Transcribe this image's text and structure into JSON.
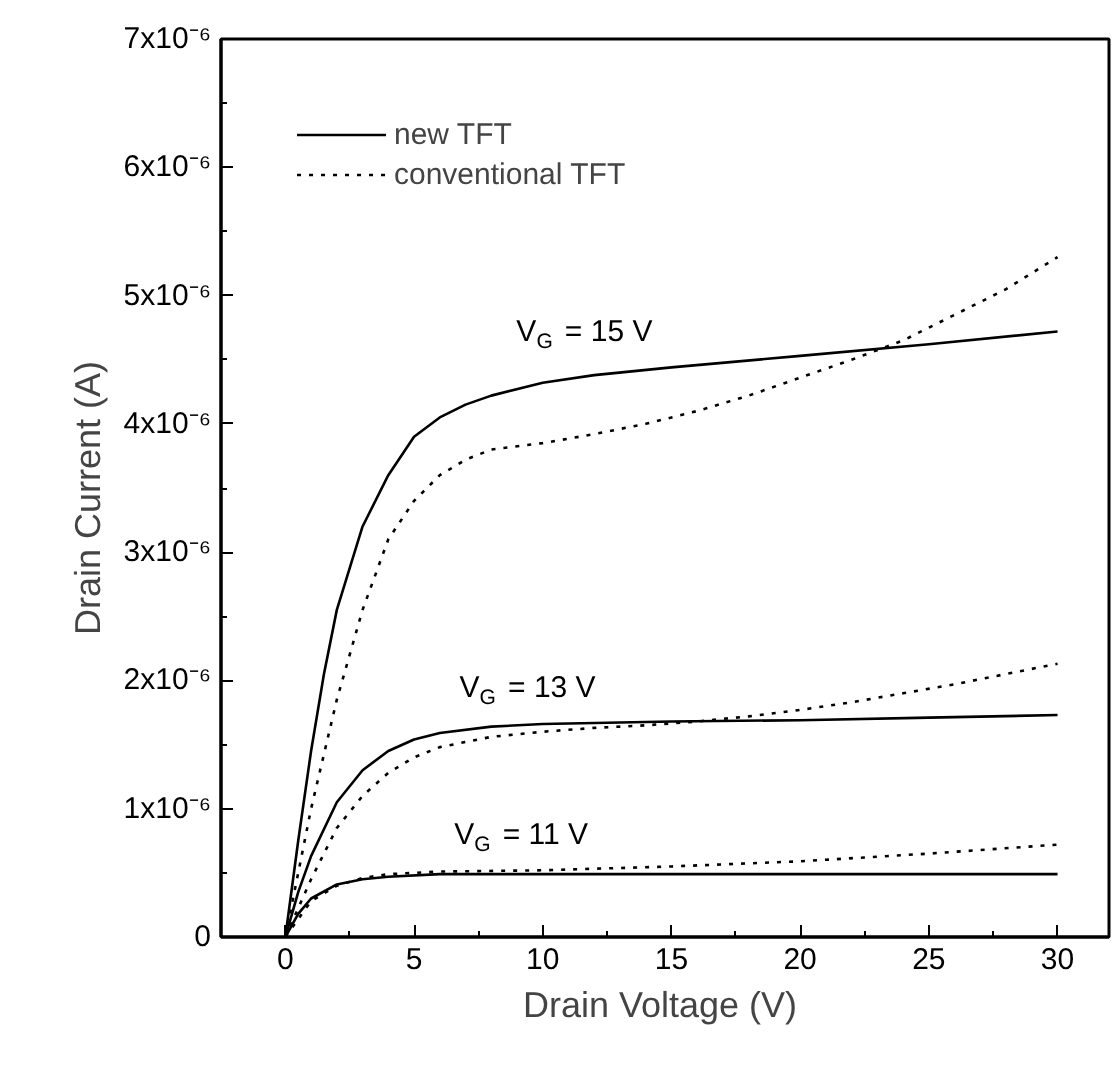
{
  "chart_data": {
    "type": "line",
    "xlabel": "Drain Voltage  (V)",
    "ylabel": "Drain  Current  (A)",
    "xlim": [
      -2.5,
      32
    ],
    "ylim": [
      0,
      7e-06
    ],
    "xticks": [
      0,
      5,
      10,
      15,
      20,
      25,
      30
    ],
    "yticks": [
      0,
      {
        "value": 1e-06,
        "label": "1x10⁻⁶"
      },
      {
        "value": 2e-06,
        "label": "2x10⁻⁶"
      },
      {
        "value": 3e-06,
        "label": "3x10⁻⁶"
      },
      {
        "value": 4e-06,
        "label": "4x10⁻⁶"
      },
      {
        "value": 5e-06,
        "label": "5x10⁻⁶"
      },
      {
        "value": 6e-06,
        "label": "6x10⁻⁶"
      },
      {
        "value": 7e-06,
        "label": "7x10⁻⁶"
      }
    ],
    "grid": false,
    "legend": "top left",
    "series": [
      {
        "name": "new TFT",
        "color": "#000000",
        "line_style": "solid",
        "x": [
          0,
          0.5,
          1,
          1.5,
          2,
          3,
          4,
          5,
          6,
          7,
          8,
          10,
          12,
          15,
          20,
          25,
          30
        ],
        "values": [
          0,
          7.5e-07,
          1.45e-06,
          2.05e-06,
          2.55e-06,
          3.2e-06,
          3.6e-06,
          3.9e-06,
          4.05e-06,
          4.15e-06,
          4.22e-06,
          4.32e-06,
          4.38e-06,
          4.44e-06,
          4.53e-06,
          4.62e-06,
          4.72e-06
        ]
      },
      {
        "name": "conventional TFT",
        "color": "#000000",
        "line_style": "dotted",
        "x": [
          0,
          1,
          2,
          3,
          4,
          5,
          6,
          7,
          8,
          10,
          12,
          14,
          16,
          18,
          20,
          22,
          24,
          26,
          28,
          30
        ],
        "values": [
          0,
          1e-06,
          1.85e-06,
          2.55e-06,
          3.1e-06,
          3.4e-06,
          3.6e-06,
          3.72e-06,
          3.8e-06,
          3.85e-06,
          3.92e-06,
          4e-06,
          4.1e-06,
          4.22e-06,
          4.36e-06,
          4.5e-06,
          4.65e-06,
          4.85e-06,
          5.05e-06,
          5.3e-06
        ]
      },
      {
        "color": "#000000",
        "line_style": "solid",
        "x": [
          0,
          0.5,
          1,
          2,
          3,
          4,
          5,
          6,
          8,
          10,
          15,
          20,
          25,
          30
        ],
        "values": [
          0,
          3.5e-07,
          6.3e-07,
          1.05e-06,
          1.3e-06,
          1.45e-06,
          1.54e-06,
          1.59e-06,
          1.64e-06,
          1.66e-06,
          1.68e-06,
          1.69e-06,
          1.71e-06,
          1.73e-06
        ]
      },
      {
        "color": "#000000",
        "line_style": "dotted",
        "x": [
          0,
          1,
          2,
          3,
          4,
          5,
          6,
          8,
          10,
          12,
          14,
          16,
          18,
          20,
          22,
          24,
          26,
          28,
          30
        ],
        "values": [
          0,
          4.5e-07,
          8.5e-07,
          1.1e-06,
          1.28e-06,
          1.4e-06,
          1.48e-06,
          1.56e-06,
          1.6e-06,
          1.63e-06,
          1.65e-06,
          1.68e-06,
          1.72e-06,
          1.77e-06,
          1.83e-06,
          1.9e-06,
          1.97e-06,
          2.05e-06,
          2.13e-06
        ]
      },
      {
        "color": "#000000",
        "line_style": "solid",
        "x": [
          0,
          0.5,
          1,
          2,
          3,
          4,
          6,
          10,
          20,
          30
        ],
        "values": [
          0,
          1.8e-07,
          3e-07,
          4.1e-07,
          4.5e-07,
          4.7e-07,
          4.9e-07,
          4.9e-07,
          4.9e-07,
          4.9e-07
        ]
      },
      {
        "color": "#000000",
        "line_style": "dotted",
        "x": [
          0,
          1,
          2,
          3,
          4,
          6,
          10,
          15,
          20,
          25,
          30
        ],
        "values": [
          0,
          2.8e-07,
          4e-07,
          4.6e-07,
          4.9e-07,
          5.1e-07,
          5.2e-07,
          5.5e-07,
          5.9e-07,
          6.5e-07,
          7.2e-07
        ]
      }
    ],
    "annotations": [
      "V$_{G}$ = 15 V",
      "V$_{G}$ = 13 V",
      "V$_{G}$ = 11 V"
    ]
  }
}
